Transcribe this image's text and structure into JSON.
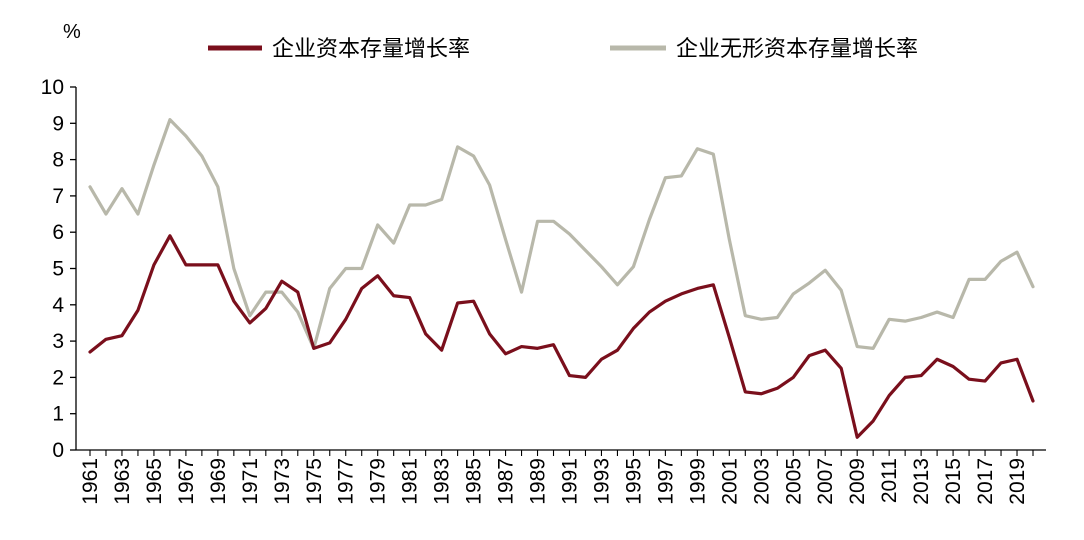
{
  "chart_data": {
    "type": "line",
    "unit_label": "%",
    "ylim": [
      0,
      10
    ],
    "yticks": [
      0,
      1,
      2,
      3,
      4,
      5,
      6,
      7,
      8,
      9,
      10
    ],
    "x": [
      1961,
      1962,
      1963,
      1964,
      1965,
      1966,
      1967,
      1968,
      1969,
      1970,
      1971,
      1972,
      1973,
      1974,
      1975,
      1976,
      1977,
      1978,
      1979,
      1980,
      1981,
      1982,
      1983,
      1984,
      1985,
      1986,
      1987,
      1988,
      1989,
      1990,
      1991,
      1992,
      1993,
      1994,
      1995,
      1996,
      1997,
      1998,
      1999,
      2000,
      2001,
      2002,
      2003,
      2004,
      2005,
      2006,
      2007,
      2008,
      2009,
      2010,
      2011,
      2012,
      2013,
      2014,
      2015,
      2016,
      2017,
      2018,
      2019,
      2020
    ],
    "xtick_labels": [
      "1961",
      "1963",
      "1965",
      "1967",
      "1969",
      "1971",
      "1973",
      "1975",
      "1977",
      "1979",
      "1981",
      "1983",
      "1985",
      "1987",
      "1989",
      "1991",
      "1993",
      "1995",
      "1997",
      "1999",
      "2001",
      "2003",
      "2005",
      "2007",
      "2009",
      "2011",
      "2013",
      "2015",
      "2017",
      "2019"
    ],
    "legend_position": "top",
    "grid": false,
    "series": [
      {
        "name": "企业资本存量增长率",
        "color": "#7a0f1c",
        "values": [
          2.7,
          3.05,
          3.15,
          3.85,
          5.1,
          5.9,
          5.1,
          5.1,
          5.1,
          4.1,
          3.5,
          3.9,
          4.65,
          4.35,
          2.8,
          2.95,
          3.6,
          4.45,
          4.8,
          4.25,
          4.2,
          3.2,
          2.75,
          4.05,
          4.1,
          3.2,
          2.65,
          2.85,
          2.8,
          2.9,
          2.05,
          2.0,
          2.5,
          2.75,
          3.35,
          3.8,
          4.1,
          4.3,
          4.45,
          4.55,
          3.1,
          1.6,
          1.55,
          1.7,
          2.0,
          2.6,
          2.75,
          2.25,
          0.35,
          0.8,
          1.5,
          2.0,
          2.05,
          2.5,
          2.3,
          1.95,
          1.9,
          2.4,
          2.5,
          1.35
        ]
      },
      {
        "name": "企业无形资本存量增长率",
        "color": "#b8b8aa",
        "values": [
          7.25,
          6.5,
          7.2,
          6.5,
          7.85,
          9.1,
          8.65,
          8.1,
          7.25,
          5.0,
          3.7,
          4.35,
          4.35,
          3.8,
          2.8,
          4.45,
          5.0,
          5.0,
          6.2,
          5.7,
          6.75,
          6.75,
          6.9,
          8.35,
          8.1,
          7.3,
          5.8,
          4.35,
          6.3,
          6.3,
          5.95,
          5.5,
          5.05,
          4.55,
          5.05,
          6.35,
          7.5,
          7.55,
          8.3,
          8.15,
          5.8,
          3.7,
          3.6,
          3.65,
          4.3,
          4.6,
          4.95,
          4.4,
          2.85,
          2.8,
          3.6,
          3.55,
          3.65,
          3.8,
          3.65,
          4.7,
          4.7,
          5.2,
          5.45,
          4.5
        ]
      }
    ]
  }
}
